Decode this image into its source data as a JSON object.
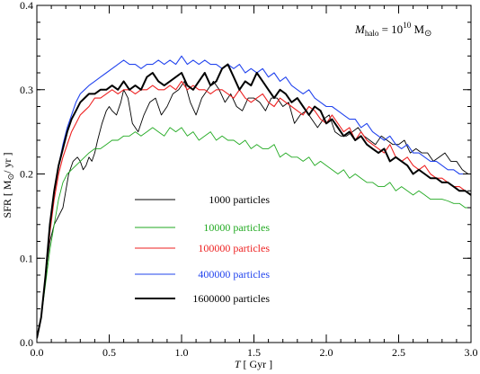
{
  "chart_data": {
    "type": "line",
    "xlabel_var": "T",
    "xlabel_unit": "[ Gyr ]",
    "ylabel_prefix": "SFR",
    "ylabel_unit_open": "[ M",
    "ylabel_sun": "⊙",
    "ylabel_unit_close": "/ yr ]",
    "xlim": [
      0.0,
      3.0
    ],
    "ylim": [
      0.0,
      0.4
    ],
    "xticks": [
      "0.0",
      "0.5",
      "1.0",
      "1.5",
      "2.0",
      "2.5",
      "3.0"
    ],
    "yticks": [
      "0.0",
      "0.1",
      "0.2",
      "0.3",
      "0.4"
    ],
    "annotation": {
      "var": "M",
      "sub": "halo",
      "eq": " = 10",
      "exp": "10",
      "unit": " M",
      "sun": "⊙"
    },
    "legend_position": "lower-left",
    "series": [
      {
        "name": "1000 particles",
        "color": "#000000",
        "width": 0.9,
        "x": [
          0.0,
          0.03,
          0.06,
          0.09,
          0.12,
          0.15,
          0.18,
          0.2,
          0.22,
          0.25,
          0.28,
          0.3,
          0.32,
          0.34,
          0.36,
          0.38,
          0.4,
          0.42,
          0.45,
          0.48,
          0.5,
          0.52,
          0.55,
          0.58,
          0.6,
          0.63,
          0.66,
          0.7,
          0.74,
          0.78,
          0.82,
          0.86,
          0.9,
          0.94,
          0.98,
          1.02,
          1.06,
          1.1,
          1.14,
          1.18,
          1.22,
          1.26,
          1.3,
          1.34,
          1.38,
          1.42,
          1.46,
          1.5,
          1.54,
          1.58,
          1.62,
          1.66,
          1.7,
          1.74,
          1.78,
          1.82,
          1.86,
          1.9,
          1.94,
          1.98,
          2.02,
          2.06,
          2.1,
          2.14,
          2.18,
          2.22,
          2.26,
          2.3,
          2.34,
          2.38,
          2.42,
          2.46,
          2.5,
          2.54,
          2.58,
          2.62,
          2.66,
          2.7,
          2.74,
          2.78,
          2.82,
          2.86,
          2.9,
          2.94,
          2.98,
          3.0
        ],
        "y": [
          0.005,
          0.03,
          0.08,
          0.12,
          0.14,
          0.15,
          0.16,
          0.18,
          0.2,
          0.215,
          0.22,
          0.215,
          0.205,
          0.21,
          0.22,
          0.215,
          0.225,
          0.24,
          0.26,
          0.275,
          0.28,
          0.275,
          0.27,
          0.285,
          0.3,
          0.29,
          0.26,
          0.25,
          0.27,
          0.285,
          0.29,
          0.27,
          0.28,
          0.295,
          0.3,
          0.31,
          0.285,
          0.27,
          0.29,
          0.3,
          0.31,
          0.3,
          0.285,
          0.295,
          0.28,
          0.275,
          0.29,
          0.29,
          0.285,
          0.275,
          0.29,
          0.29,
          0.28,
          0.285,
          0.26,
          0.27,
          0.275,
          0.265,
          0.255,
          0.265,
          0.27,
          0.25,
          0.245,
          0.245,
          0.25,
          0.255,
          0.245,
          0.24,
          0.235,
          0.245,
          0.24,
          0.235,
          0.235,
          0.24,
          0.225,
          0.23,
          0.225,
          0.225,
          0.215,
          0.22,
          0.225,
          0.215,
          0.215,
          0.205,
          0.2,
          0.2
        ]
      },
      {
        "name": "10000 particles",
        "color": "#22aa22",
        "width": 0.9,
        "x": [
          0.0,
          0.03,
          0.06,
          0.09,
          0.12,
          0.15,
          0.18,
          0.21,
          0.24,
          0.27,
          0.3,
          0.33,
          0.36,
          0.4,
          0.44,
          0.48,
          0.52,
          0.56,
          0.6,
          0.64,
          0.68,
          0.72,
          0.76,
          0.8,
          0.84,
          0.88,
          0.92,
          0.96,
          1.0,
          1.04,
          1.08,
          1.12,
          1.16,
          1.2,
          1.24,
          1.28,
          1.32,
          1.36,
          1.4,
          1.44,
          1.48,
          1.52,
          1.56,
          1.6,
          1.64,
          1.68,
          1.72,
          1.76,
          1.8,
          1.84,
          1.88,
          1.92,
          1.96,
          2.0,
          2.04,
          2.08,
          2.12,
          2.16,
          2.2,
          2.24,
          2.28,
          2.32,
          2.36,
          2.4,
          2.44,
          2.48,
          2.52,
          2.56,
          2.6,
          2.64,
          2.68,
          2.72,
          2.76,
          2.8,
          2.84,
          2.88,
          2.92,
          2.96,
          3.0
        ],
        "y": [
          0.005,
          0.03,
          0.07,
          0.11,
          0.14,
          0.17,
          0.19,
          0.2,
          0.205,
          0.21,
          0.215,
          0.22,
          0.225,
          0.23,
          0.23,
          0.235,
          0.24,
          0.24,
          0.245,
          0.245,
          0.25,
          0.245,
          0.25,
          0.255,
          0.25,
          0.245,
          0.255,
          0.25,
          0.255,
          0.245,
          0.25,
          0.24,
          0.245,
          0.25,
          0.24,
          0.245,
          0.24,
          0.24,
          0.235,
          0.24,
          0.23,
          0.235,
          0.23,
          0.23,
          0.235,
          0.22,
          0.225,
          0.22,
          0.22,
          0.215,
          0.22,
          0.21,
          0.215,
          0.21,
          0.205,
          0.2,
          0.205,
          0.195,
          0.2,
          0.195,
          0.19,
          0.19,
          0.185,
          0.185,
          0.19,
          0.18,
          0.185,
          0.18,
          0.175,
          0.18,
          0.175,
          0.17,
          0.17,
          0.17,
          0.168,
          0.165,
          0.165,
          0.16,
          0.16
        ]
      },
      {
        "name": "100000 particles",
        "color": "#ee2222",
        "width": 1.1,
        "x": [
          0.0,
          0.03,
          0.06,
          0.09,
          0.12,
          0.15,
          0.18,
          0.21,
          0.24,
          0.27,
          0.3,
          0.33,
          0.36,
          0.4,
          0.44,
          0.48,
          0.52,
          0.56,
          0.6,
          0.64,
          0.68,
          0.72,
          0.76,
          0.8,
          0.84,
          0.88,
          0.92,
          0.96,
          1.0,
          1.04,
          1.08,
          1.12,
          1.16,
          1.2,
          1.24,
          1.28,
          1.32,
          1.36,
          1.4,
          1.44,
          1.48,
          1.52,
          1.56,
          1.6,
          1.64,
          1.68,
          1.72,
          1.76,
          1.8,
          1.84,
          1.88,
          1.92,
          1.96,
          2.0,
          2.04,
          2.08,
          2.12,
          2.16,
          2.2,
          2.24,
          2.28,
          2.32,
          2.36,
          2.4,
          2.44,
          2.48,
          2.52,
          2.56,
          2.6,
          2.64,
          2.68,
          2.72,
          2.76,
          2.8,
          2.84,
          2.88,
          2.92,
          2.96,
          3.0
        ],
        "y": [
          0.005,
          0.03,
          0.08,
          0.13,
          0.17,
          0.2,
          0.22,
          0.235,
          0.25,
          0.26,
          0.27,
          0.275,
          0.28,
          0.29,
          0.29,
          0.295,
          0.3,
          0.295,
          0.3,
          0.3,
          0.295,
          0.3,
          0.3,
          0.305,
          0.3,
          0.3,
          0.305,
          0.3,
          0.31,
          0.3,
          0.305,
          0.3,
          0.3,
          0.295,
          0.3,
          0.3,
          0.295,
          0.29,
          0.3,
          0.29,
          0.285,
          0.29,
          0.295,
          0.285,
          0.28,
          0.29,
          0.285,
          0.28,
          0.275,
          0.27,
          0.28,
          0.275,
          0.265,
          0.26,
          0.27,
          0.26,
          0.25,
          0.255,
          0.24,
          0.25,
          0.24,
          0.235,
          0.23,
          0.225,
          0.235,
          0.22,
          0.215,
          0.22,
          0.21,
          0.205,
          0.21,
          0.2,
          0.195,
          0.195,
          0.19,
          0.185,
          0.185,
          0.18,
          0.175
        ]
      },
      {
        "name": "400000 particles",
        "color": "#2244ee",
        "width": 1.1,
        "x": [
          0.0,
          0.03,
          0.06,
          0.09,
          0.12,
          0.15,
          0.18,
          0.21,
          0.24,
          0.27,
          0.3,
          0.33,
          0.36,
          0.4,
          0.44,
          0.48,
          0.52,
          0.56,
          0.6,
          0.64,
          0.68,
          0.72,
          0.76,
          0.8,
          0.84,
          0.88,
          0.92,
          0.96,
          1.0,
          1.04,
          1.08,
          1.12,
          1.16,
          1.2,
          1.24,
          1.28,
          1.32,
          1.36,
          1.4,
          1.44,
          1.48,
          1.52,
          1.56,
          1.6,
          1.64,
          1.68,
          1.72,
          1.76,
          1.8,
          1.84,
          1.88,
          1.92,
          1.96,
          2.0,
          2.04,
          2.08,
          2.12,
          2.16,
          2.2,
          2.24,
          2.28,
          2.32,
          2.36,
          2.4,
          2.44,
          2.48,
          2.52,
          2.56,
          2.6,
          2.64,
          2.68,
          2.72,
          2.76,
          2.8,
          2.84,
          2.88,
          2.92,
          2.96,
          3.0
        ],
        "y": [
          0.005,
          0.03,
          0.08,
          0.14,
          0.18,
          0.21,
          0.235,
          0.255,
          0.27,
          0.285,
          0.295,
          0.3,
          0.305,
          0.31,
          0.315,
          0.32,
          0.325,
          0.33,
          0.335,
          0.33,
          0.33,
          0.325,
          0.33,
          0.33,
          0.335,
          0.33,
          0.335,
          0.33,
          0.34,
          0.33,
          0.335,
          0.33,
          0.335,
          0.33,
          0.33,
          0.325,
          0.33,
          0.325,
          0.33,
          0.32,
          0.325,
          0.32,
          0.325,
          0.315,
          0.32,
          0.31,
          0.315,
          0.305,
          0.3,
          0.295,
          0.3,
          0.29,
          0.285,
          0.28,
          0.28,
          0.275,
          0.27,
          0.265,
          0.265,
          0.255,
          0.26,
          0.25,
          0.245,
          0.24,
          0.245,
          0.235,
          0.23,
          0.235,
          0.225,
          0.225,
          0.22,
          0.215,
          0.215,
          0.21,
          0.205,
          0.205,
          0.2,
          0.2,
          0.2
        ]
      },
      {
        "name": "1600000 particles",
        "color": "#000000",
        "width": 2.0,
        "x": [
          0.0,
          0.03,
          0.06,
          0.09,
          0.12,
          0.15,
          0.18,
          0.21,
          0.24,
          0.27,
          0.3,
          0.33,
          0.36,
          0.4,
          0.44,
          0.48,
          0.52,
          0.56,
          0.6,
          0.64,
          0.68,
          0.72,
          0.76,
          0.8,
          0.84,
          0.88,
          0.92,
          0.96,
          1.0,
          1.04,
          1.08,
          1.12,
          1.16,
          1.2,
          1.24,
          1.28,
          1.32,
          1.36,
          1.4,
          1.44,
          1.48,
          1.52,
          1.56,
          1.6,
          1.64,
          1.68,
          1.72,
          1.76,
          1.8,
          1.84,
          1.88,
          1.92,
          1.96,
          2.0,
          2.04,
          2.08,
          2.12,
          2.16,
          2.2,
          2.24,
          2.28,
          2.32,
          2.36,
          2.4,
          2.44,
          2.48,
          2.52,
          2.56,
          2.6,
          2.64,
          2.68,
          2.72,
          2.76,
          2.8,
          2.84,
          2.88,
          2.92,
          2.96,
          3.0
        ],
        "y": [
          0.005,
          0.03,
          0.08,
          0.14,
          0.18,
          0.21,
          0.23,
          0.25,
          0.265,
          0.275,
          0.285,
          0.29,
          0.295,
          0.295,
          0.3,
          0.3,
          0.305,
          0.3,
          0.31,
          0.3,
          0.305,
          0.3,
          0.315,
          0.32,
          0.31,
          0.305,
          0.31,
          0.315,
          0.32,
          0.305,
          0.3,
          0.31,
          0.32,
          0.305,
          0.31,
          0.325,
          0.33,
          0.315,
          0.3,
          0.31,
          0.305,
          0.32,
          0.31,
          0.3,
          0.29,
          0.3,
          0.295,
          0.285,
          0.29,
          0.28,
          0.27,
          0.28,
          0.275,
          0.26,
          0.265,
          0.255,
          0.245,
          0.25,
          0.24,
          0.245,
          0.235,
          0.23,
          0.225,
          0.23,
          0.215,
          0.22,
          0.215,
          0.21,
          0.2,
          0.205,
          0.2,
          0.195,
          0.195,
          0.19,
          0.19,
          0.185,
          0.18,
          0.18,
          0.175
        ]
      }
    ]
  }
}
